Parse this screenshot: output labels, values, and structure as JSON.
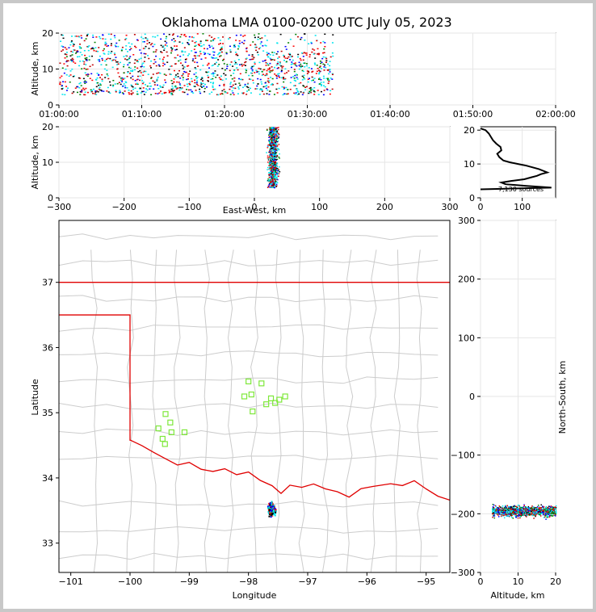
{
  "title": "Oklahoma LMA 0100-0200 UTC July 05, 2023",
  "colors": {
    "state_line": "#e00000",
    "county_line": "#cccccc",
    "station": "#7ee83a",
    "density": [
      "#00e5ee",
      "#0000ff",
      "#008000",
      "#c00000",
      "#ff0000",
      "#000000"
    ]
  },
  "chart_data": [
    {
      "id": "time-height",
      "type": "heatmap",
      "xlabel": "",
      "ylabel": "Altitude, km",
      "xlim": [
        "01:00:00",
        "02:00:00"
      ],
      "ylim": [
        0,
        20
      ],
      "x_ticks": [
        "01:00:00",
        "01:10:00",
        "01:20:00",
        "01:30:00",
        "01:40:00",
        "01:50:00",
        "02:00:00"
      ],
      "y_ticks": [
        "0",
        "10",
        "20"
      ],
      "activity_minutes": [
        [
          0,
          33
        ]
      ],
      "altitude_range_km": [
        3,
        20
      ]
    },
    {
      "id": "ew-height",
      "type": "heatmap",
      "xlabel": "East-West, km",
      "ylabel": "Altitude, km",
      "xlim": [
        -300,
        300
      ],
      "ylim": [
        0,
        20
      ],
      "x_ticks": [
        "−300",
        "−200",
        "−100",
        "0",
        "100",
        "200",
        "300"
      ],
      "y_ticks": [
        "0",
        "10",
        "20"
      ],
      "cluster_center_x_km": 28,
      "cluster_width_km": 12
    },
    {
      "id": "altitude-histogram",
      "type": "line",
      "xlim": [
        0,
        180
      ],
      "ylim": [
        0,
        21
      ],
      "x_ticks": [
        "0",
        "100"
      ],
      "y_ticks": [
        "0",
        "10",
        "20"
      ],
      "annotation": "7,130 sources",
      "profile": [
        [
          0,
          2.5
        ],
        [
          170,
          3.0
        ],
        [
          110,
          3.5
        ],
        [
          60,
          4.0
        ],
        [
          50,
          4.5
        ],
        [
          75,
          5.0
        ],
        [
          105,
          5.5
        ],
        [
          120,
          6.0
        ],
        [
          135,
          6.5
        ],
        [
          145,
          7.0
        ],
        [
          160,
          7.5
        ],
        [
          150,
          8.0
        ],
        [
          140,
          8.5
        ],
        [
          125,
          9.0
        ],
        [
          110,
          9.5
        ],
        [
          90,
          10.0
        ],
        [
          70,
          10.5
        ],
        [
          55,
          11.0
        ],
        [
          45,
          12.0
        ],
        [
          40,
          13.0
        ],
        [
          50,
          14.0
        ],
        [
          48,
          15.0
        ],
        [
          38,
          16.0
        ],
        [
          30,
          17.0
        ],
        [
          25,
          18.0
        ],
        [
          20,
          19.0
        ],
        [
          12,
          20.0
        ],
        [
          0,
          20.5
        ]
      ]
    },
    {
      "id": "plan-view",
      "type": "scatter",
      "xlabel": "Longitude",
      "ylabel": "Latitude",
      "xlim": [
        -101.2,
        -94.6
      ],
      "ylim": [
        32.55,
        37.95
      ],
      "x_ticks": [
        "−101",
        "−100",
        "−99",
        "−98",
        "−97",
        "−96",
        "−95"
      ],
      "y_ticks": [
        "33",
        "34",
        "35",
        "36",
        "37"
      ],
      "x_tick_values": [
        -101,
        -100,
        -99,
        -98,
        -97,
        -96,
        -95
      ],
      "y_tick_values": [
        33,
        34,
        35,
        36,
        37
      ],
      "stations": [
        [
          -99.4,
          34.98
        ],
        [
          -99.32,
          34.85
        ],
        [
          -99.52,
          34.76
        ],
        [
          -99.45,
          34.6
        ],
        [
          -99.41,
          34.52
        ],
        [
          -99.3,
          34.7
        ],
        [
          -99.08,
          34.7
        ],
        [
          -98.0,
          35.48
        ],
        [
          -98.07,
          35.25
        ],
        [
          -97.95,
          35.28
        ],
        [
          -97.78,
          35.45
        ],
        [
          -97.7,
          35.13
        ],
        [
          -97.55,
          35.15
        ],
        [
          -97.48,
          35.2
        ],
        [
          -97.38,
          35.25
        ],
        [
          -97.93,
          35.02
        ],
        [
          -97.62,
          35.22
        ]
      ],
      "cluster_center": [
        -97.62,
        33.53
      ]
    },
    {
      "id": "ns-height",
      "type": "heatmap",
      "xlabel": "Altitude, km",
      "ylabel": "North-South, km",
      "xlim": [
        0,
        20
      ],
      "ylim": [
        -300,
        300
      ],
      "x_ticks": [
        "0",
        "10",
        "20"
      ],
      "y_ticks": [
        "−300",
        "−200",
        "−100",
        "0",
        "100",
        "200",
        "300"
      ],
      "cluster_center_y_km": -195,
      "cluster_height_km": 15
    }
  ]
}
